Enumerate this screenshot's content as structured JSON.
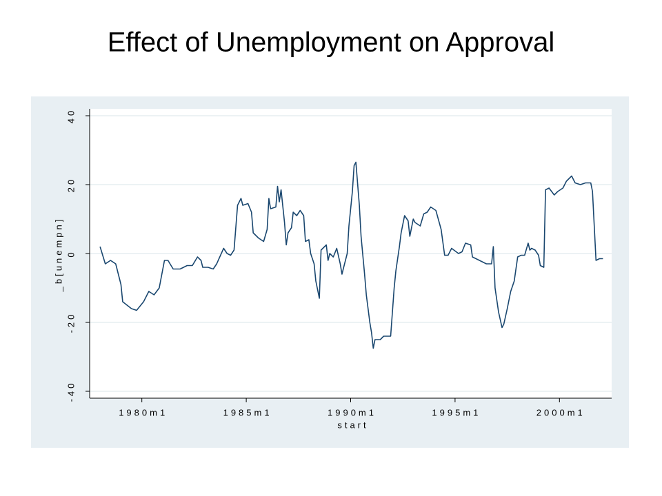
{
  "chart_data": {
    "type": "line",
    "title": "Effect of Unemployment on Approval",
    "x_label": "start",
    "y_label": "_b[unempn]",
    "xlim": [
      "1977m7",
      "2002m7"
    ],
    "xticks": [
      "1980m1",
      "1985m1",
      "1990m1",
      "1995m1",
      "2000m1"
    ],
    "ylim": [
      -42,
      42
    ],
    "yticks": [
      -40,
      -20,
      0,
      20,
      40
    ],
    "grid": true,
    "x": [
      "1978m1",
      "1978m4",
      "1978m7",
      "1978m10",
      "1979m1",
      "1979m2",
      "1979m7",
      "1979m10",
      "1980m2",
      "1980m5",
      "1980m8",
      "1980m11",
      "1981m2",
      "1981m4",
      "1981m7",
      "1981m11",
      "1982m3",
      "1982m6",
      "1982m9",
      "1982m11",
      "1982m12",
      "1983m3",
      "1983m6",
      "1983m8",
      "1983m12",
      "1984m2",
      "1984m4",
      "1984m6",
      "1984m8",
      "1984m10",
      "1984m11",
      "1985m2",
      "1985m4",
      "1985m5",
      "1985m8",
      "1985m11",
      "1986m1",
      "1986m2",
      "1986m3",
      "1986m6",
      "1986m7",
      "1986m8",
      "1986m9",
      "1986m11",
      "1986m12",
      "1987m1",
      "1987m3",
      "1987m4",
      "1987m6",
      "1987m8",
      "1987m10",
      "1987m11",
      "1988m1",
      "1988m2",
      "1988m4",
      "1988m5",
      "1988m7",
      "1988m8",
      "1988m11",
      "1988m12",
      "1989m1",
      "1989m3",
      "1989m5",
      "1989m7",
      "1989m8",
      "1989m9",
      "1989m11",
      "1989m12",
      "1990m2",
      "1990m3",
      "1990m4",
      "1990m6",
      "1990m7",
      "1990m9",
      "1990m10",
      "1990m12",
      "1991m1",
      "1991m2",
      "1991m3",
      "1991m6",
      "1991m8",
      "1991m12",
      "1992m2",
      "1992m3",
      "1992m5",
      "1992m6",
      "1992m8",
      "1992m10",
      "1992m11",
      "1993m1",
      "1993m2",
      "1993m5",
      "1993m7",
      "1993m9",
      "1993m11",
      "1994m2",
      "1994m5",
      "1994m7",
      "1994m9",
      "1994m11",
      "1995m3",
      "1995m5",
      "1995m7",
      "1995m10",
      "1995m11",
      "1996m1",
      "1996m5",
      "1996m7",
      "1996m10",
      "1996m11",
      "1996m12",
      "1997m2",
      "1997m4",
      "1997m5",
      "1997m7",
      "1997m9",
      "1997m11",
      "1998m1",
      "1998m3",
      "1998m5",
      "1998m7",
      "1998m8",
      "1998m9",
      "1998m11",
      "1999m1",
      "1999m2",
      "1999m4",
      "1999m5",
      "1999m7",
      "1999m10",
      "1999m12",
      "2000m3",
      "2000m5",
      "2000m7",
      "2000m8",
      "2000m10",
      "2001m1",
      "2001m4",
      "2001m7",
      "2001m8",
      "2001m10",
      "2001m12",
      "2002m2"
    ],
    "series": [
      {
        "color": "#1a476f",
        "values": [
          2,
          -3,
          -2,
          -3,
          -9,
          -14,
          -16,
          -16.5,
          -14,
          -11,
          -12,
          -10,
          -2,
          -2,
          -4.5,
          -4.5,
          -3.5,
          -3.5,
          -1,
          -2,
          -4,
          -4,
          -4.5,
          -3,
          1.5,
          0,
          -0.5,
          1,
          14,
          16,
          14,
          14.5,
          12,
          6,
          4.5,
          3.5,
          7,
          16,
          13,
          13.5,
          19.5,
          15,
          18.5,
          9,
          2.5,
          6,
          7.5,
          12,
          11,
          12.5,
          11,
          3.5,
          4,
          0,
          -3,
          -8,
          -13,
          1,
          2.5,
          -2,
          0,
          -1,
          1.5,
          -3,
          -6,
          -4,
          0,
          8,
          18,
          25.5,
          26.5,
          14,
          5,
          -6,
          -12,
          -20,
          -23,
          -27.5,
          -25,
          -25,
          -24,
          -24,
          -10,
          -5,
          2,
          6,
          11,
          9.5,
          5,
          10,
          9,
          8,
          11.5,
          12,
          13.5,
          12.5,
          7,
          -0.5,
          -0.5,
          1.5,
          0,
          0.5,
          3,
          2.5,
          -1,
          -1.5,
          -2.5,
          -3,
          -3,
          2,
          -10,
          -17,
          -21.5,
          -20.5,
          -16,
          -11,
          -8,
          -1,
          -0.5,
          -0.5,
          3,
          1,
          1.5,
          1,
          -0.5,
          -3.5,
          -4,
          18.5,
          19,
          17,
          18,
          19,
          21,
          22,
          22.5,
          20.5,
          20,
          20.5,
          20.5,
          18,
          -2,
          -1.5,
          -1.5
        ]
      }
    ]
  }
}
